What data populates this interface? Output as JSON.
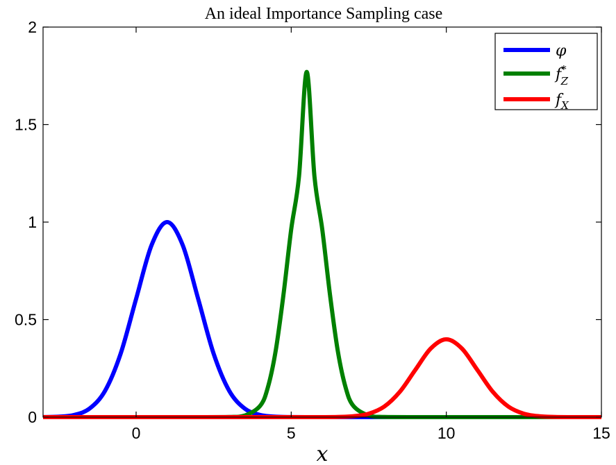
{
  "chart_data": {
    "type": "line",
    "title": "An ideal Importance Sampling case",
    "xlabel": "x",
    "ylabel": "",
    "xlim": [
      -3,
      15
    ],
    "ylim": [
      0,
      2
    ],
    "xticks": [
      0,
      5,
      10,
      15
    ],
    "xtick_labels": [
      "0",
      "5",
      "10",
      "15"
    ],
    "yticks": [
      0,
      0.5,
      1,
      1.5,
      2
    ],
    "ytick_labels": [
      "0",
      "0.5",
      "1",
      "1.5",
      "2"
    ],
    "grid": false,
    "legend_position": "top-right",
    "series": [
      {
        "name": "φ",
        "legend_sub": "",
        "legend_sup": "",
        "color": "#0000ff",
        "x": [
          -3,
          -2.5,
          -2,
          -1.5,
          -1,
          -0.5,
          0,
          0.5,
          1,
          1.5,
          2,
          2.5,
          3,
          3.5,
          4,
          4.5,
          5,
          5.5,
          6,
          6.5,
          7,
          8,
          9,
          10,
          11,
          12,
          13,
          14,
          15
        ],
        "y": [
          0.0003,
          0.0022,
          0.0111,
          0.0439,
          0.1353,
          0.3247,
          0.6065,
          0.8825,
          1.0,
          0.8825,
          0.6065,
          0.3247,
          0.1353,
          0.0439,
          0.0111,
          0.0022,
          0.0003,
          0.0,
          0.0,
          0.0,
          0.0,
          0.0,
          0.0,
          0.0,
          0.0,
          0.0,
          0.0,
          0.0,
          0.0
        ]
      },
      {
        "name": "f",
        "legend_sub": "Z",
        "legend_sup": "*",
        "color": "#008000",
        "x": [
          -3,
          0,
          2,
          3,
          3.5,
          4,
          4.25,
          4.5,
          4.75,
          5,
          5.25,
          5.5,
          5.75,
          6,
          6.25,
          6.5,
          6.75,
          7,
          7.5,
          8,
          9,
          10,
          12,
          15
        ],
        "y": [
          0.0,
          0.0,
          0.0,
          0.0007,
          0.0078,
          0.0582,
          0.1541,
          0.3407,
          0.6275,
          0.9634,
          1.2327,
          1.77,
          1.2327,
          0.9634,
          0.6275,
          0.3407,
          0.1541,
          0.0582,
          0.0078,
          0.0007,
          0.0,
          0.0,
          0.0,
          0.0
        ]
      },
      {
        "name": "f",
        "legend_sub": "X",
        "legend_sup": "",
        "color": "#ff0000",
        "x": [
          -3,
          0,
          5,
          6,
          6.5,
          7,
          7.5,
          8,
          8.5,
          9,
          9.5,
          10,
          10.5,
          11,
          11.5,
          12,
          12.5,
          13,
          13.5,
          14,
          15
        ],
        "y": [
          0.0,
          0.0,
          0.0,
          0.0001,
          0.0009,
          0.0044,
          0.0175,
          0.054,
          0.1295,
          0.242,
          0.3521,
          0.3989,
          0.3521,
          0.242,
          0.1295,
          0.054,
          0.0175,
          0.0044,
          0.0009,
          0.0001,
          0.0
        ]
      }
    ]
  }
}
